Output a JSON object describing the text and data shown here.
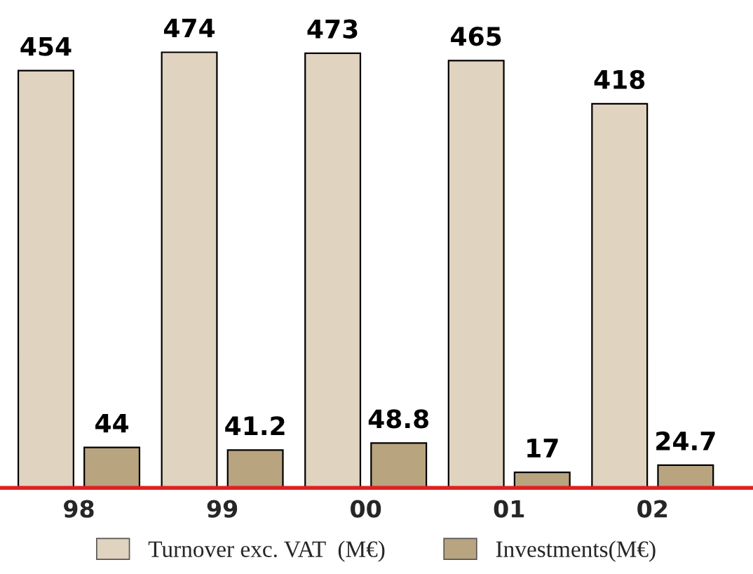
{
  "chart_data": {
    "type": "bar",
    "categories": [
      "98",
      "99",
      "00",
      "01",
      "02"
    ],
    "series": [
      {
        "name": "Turnover exc. VAT  (M€)",
        "color": "#e0d3bf",
        "values": [
          454,
          474,
          473,
          465,
          418
        ]
      },
      {
        "name": "Investments(M€)",
        "color": "#b9a480",
        "values": [
          44,
          41.2,
          48.8,
          17,
          24.7
        ]
      }
    ],
    "data_labels": true,
    "legend": "bottom",
    "grid": false
  }
}
